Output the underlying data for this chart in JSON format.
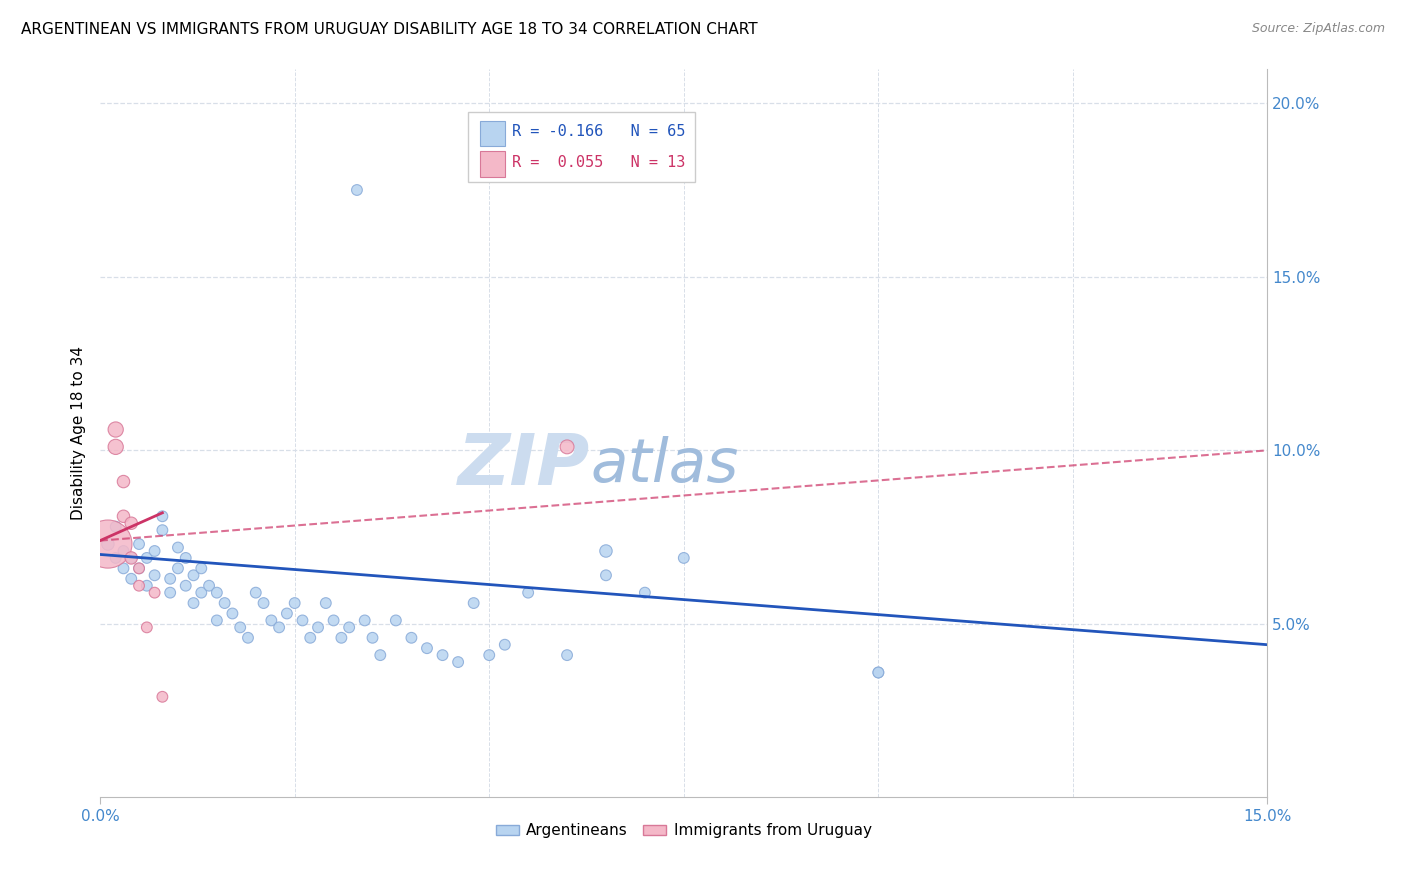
{
  "title": "ARGENTINEAN VS IMMIGRANTS FROM URUGUAY DISABILITY AGE 18 TO 34 CORRELATION CHART",
  "source": "Source: ZipAtlas.com",
  "xlabel_blue": "Argentineans",
  "xlabel_pink": "Immigrants from Uruguay",
  "ylabel": "Disability Age 18 to 34",
  "r_blue": -0.166,
  "n_blue": 65,
  "r_pink": 0.055,
  "n_pink": 13,
  "xlim": [
    0.0,
    0.15
  ],
  "ylim": [
    0.0,
    0.21
  ],
  "xtick_show": [
    0.0,
    0.15
  ],
  "xtick_labels": [
    "0.0%",
    "15.0%"
  ],
  "ytick_show": [
    0.05,
    0.1,
    0.15,
    0.2
  ],
  "ytick_labels": [
    "5.0%",
    "10.0%",
    "15.0%",
    "20.0%"
  ],
  "blue_points": [
    [
      0.001,
      0.073
    ],
    [
      0.002,
      0.069
    ],
    [
      0.002,
      0.078
    ],
    [
      0.003,
      0.066
    ],
    [
      0.003,
      0.071
    ],
    [
      0.004,
      0.063
    ],
    [
      0.004,
      0.069
    ],
    [
      0.005,
      0.066
    ],
    [
      0.005,
      0.073
    ],
    [
      0.006,
      0.061
    ],
    [
      0.006,
      0.069
    ],
    [
      0.007,
      0.064
    ],
    [
      0.007,
      0.071
    ],
    [
      0.008,
      0.077
    ],
    [
      0.008,
      0.081
    ],
    [
      0.009,
      0.063
    ],
    [
      0.009,
      0.059
    ],
    [
      0.01,
      0.066
    ],
    [
      0.01,
      0.072
    ],
    [
      0.011,
      0.069
    ],
    [
      0.011,
      0.061
    ],
    [
      0.012,
      0.056
    ],
    [
      0.012,
      0.064
    ],
    [
      0.013,
      0.059
    ],
    [
      0.013,
      0.066
    ],
    [
      0.014,
      0.061
    ],
    [
      0.015,
      0.059
    ],
    [
      0.015,
      0.051
    ],
    [
      0.016,
      0.056
    ],
    [
      0.017,
      0.053
    ],
    [
      0.018,
      0.049
    ],
    [
      0.019,
      0.046
    ],
    [
      0.02,
      0.059
    ],
    [
      0.021,
      0.056
    ],
    [
      0.022,
      0.051
    ],
    [
      0.023,
      0.049
    ],
    [
      0.024,
      0.053
    ],
    [
      0.025,
      0.056
    ],
    [
      0.026,
      0.051
    ],
    [
      0.027,
      0.046
    ],
    [
      0.028,
      0.049
    ],
    [
      0.029,
      0.056
    ],
    [
      0.03,
      0.051
    ],
    [
      0.031,
      0.046
    ],
    [
      0.032,
      0.049
    ],
    [
      0.033,
      0.175
    ],
    [
      0.034,
      0.051
    ],
    [
      0.035,
      0.046
    ],
    [
      0.036,
      0.041
    ],
    [
      0.038,
      0.051
    ],
    [
      0.04,
      0.046
    ],
    [
      0.042,
      0.043
    ],
    [
      0.044,
      0.041
    ],
    [
      0.046,
      0.039
    ],
    [
      0.048,
      0.056
    ],
    [
      0.05,
      0.041
    ],
    [
      0.052,
      0.044
    ],
    [
      0.055,
      0.059
    ],
    [
      0.06,
      0.041
    ],
    [
      0.065,
      0.071
    ],
    [
      0.065,
      0.064
    ],
    [
      0.07,
      0.059
    ],
    [
      0.075,
      0.069
    ],
    [
      0.1,
      0.036
    ],
    [
      0.1,
      0.036
    ]
  ],
  "pink_points": [
    [
      0.001,
      0.073
    ],
    [
      0.002,
      0.101
    ],
    [
      0.002,
      0.106
    ],
    [
      0.003,
      0.091
    ],
    [
      0.003,
      0.081
    ],
    [
      0.004,
      0.079
    ],
    [
      0.004,
      0.069
    ],
    [
      0.005,
      0.066
    ],
    [
      0.005,
      0.061
    ],
    [
      0.006,
      0.049
    ],
    [
      0.007,
      0.059
    ],
    [
      0.008,
      0.029
    ],
    [
      0.06,
      0.101
    ]
  ],
  "blue_sizes": [
    80,
    60,
    60,
    60,
    60,
    60,
    60,
    60,
    60,
    60,
    60,
    60,
    60,
    60,
    60,
    60,
    60,
    60,
    60,
    60,
    60,
    60,
    60,
    60,
    60,
    60,
    60,
    60,
    60,
    60,
    60,
    60,
    60,
    60,
    60,
    60,
    60,
    60,
    60,
    60,
    60,
    60,
    60,
    60,
    60,
    60,
    60,
    60,
    60,
    60,
    60,
    60,
    60,
    60,
    60,
    60,
    60,
    60,
    60,
    80,
    60,
    60,
    60,
    60,
    60
  ],
  "pink_sizes": [
    1200,
    120,
    120,
    80,
    80,
    80,
    80,
    60,
    60,
    60,
    60,
    60,
    100
  ],
  "blue_color": "#b8d4f0",
  "blue_edge": "#88aad8",
  "pink_color": "#f4b8c8",
  "pink_edge": "#d87898",
  "line_blue_color": "#2255bb",
  "line_pink_color": "#cc3366",
  "line_blue_start_y": 0.07,
  "line_blue_end_y": 0.044,
  "line_pink_start_y": 0.074,
  "line_pink_end_y": 0.082,
  "line_pink_dash_start_y": 0.074,
  "line_pink_dash_end_y": 0.1,
  "watermark_left": "ZIP",
  "watermark_right": "atlas",
  "watermark_color_left": "#ccdcef",
  "watermark_color_right": "#a0bcdc",
  "watermark_fontsize": 52,
  "grid_color": "#d8dfe8",
  "title_fontsize": 11,
  "tick_label_color": "#4488cc",
  "legend_r_blue": "R = -0.166",
  "legend_n_blue": "N = 65",
  "legend_r_pink": "R =  0.055",
  "legend_n_pink": "N = 13"
}
